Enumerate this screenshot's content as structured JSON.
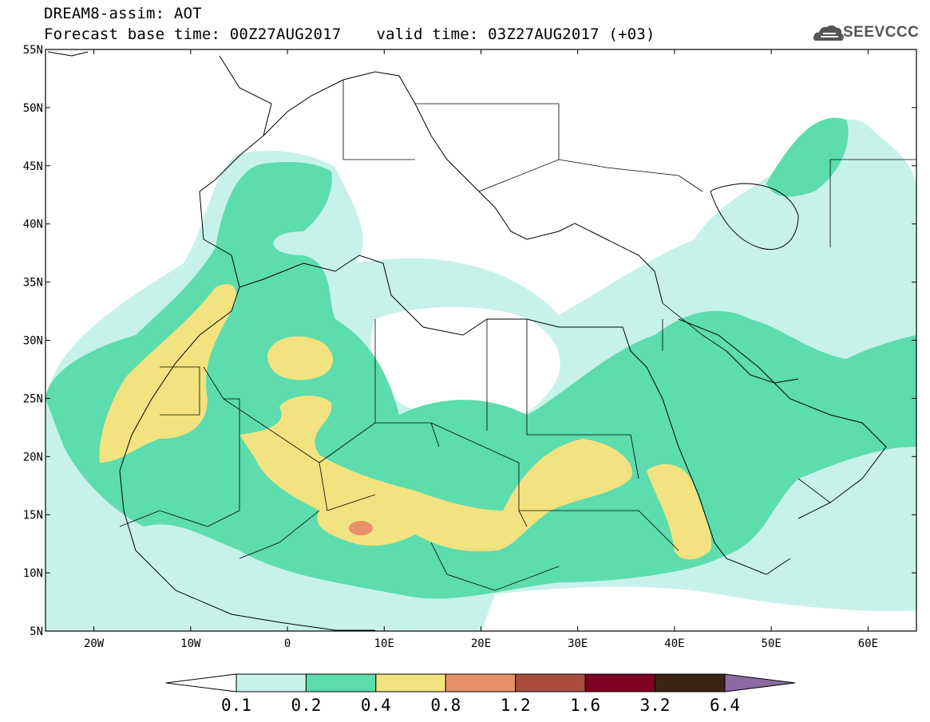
{
  "header": {
    "title": "DREAM8-assim: AOT",
    "base_time": "Forecast base time: 00Z27AUG2017",
    "valid_time": "valid time: 03Z27AUG2017 (+03)"
  },
  "logo": {
    "text": "SEEVCCC",
    "icon": "cloud-icon"
  },
  "map": {
    "lat_labels": [
      "55N",
      "50N",
      "45N",
      "40N",
      "35N",
      "30N",
      "25N",
      "20N",
      "15N",
      "10N",
      "5N"
    ],
    "lon_labels": [
      "20W",
      "10W",
      "0",
      "10E",
      "20E",
      "30E",
      "40E",
      "50E",
      "60E"
    ],
    "lon_range": [
      -25,
      65
    ],
    "lat_range": [
      5,
      55
    ],
    "field_colors": {
      "c0_1": "#c7f2ea",
      "c0_2": "#5ddcad",
      "c0_4": "#f2e380",
      "c0_8": "#e7906a",
      "border": "#000000"
    }
  },
  "colorbar": {
    "labels": [
      "0.1",
      "0.2",
      "0.4",
      "0.8",
      "1.2",
      "1.6",
      "3.2",
      "6.4"
    ],
    "colors": [
      "#ffffff",
      "#c7f2ea",
      "#5ddcad",
      "#f2e380",
      "#e7906a",
      "#ab4d3e",
      "#7e0022",
      "#3b2414",
      "#8d6aa3"
    ]
  }
}
